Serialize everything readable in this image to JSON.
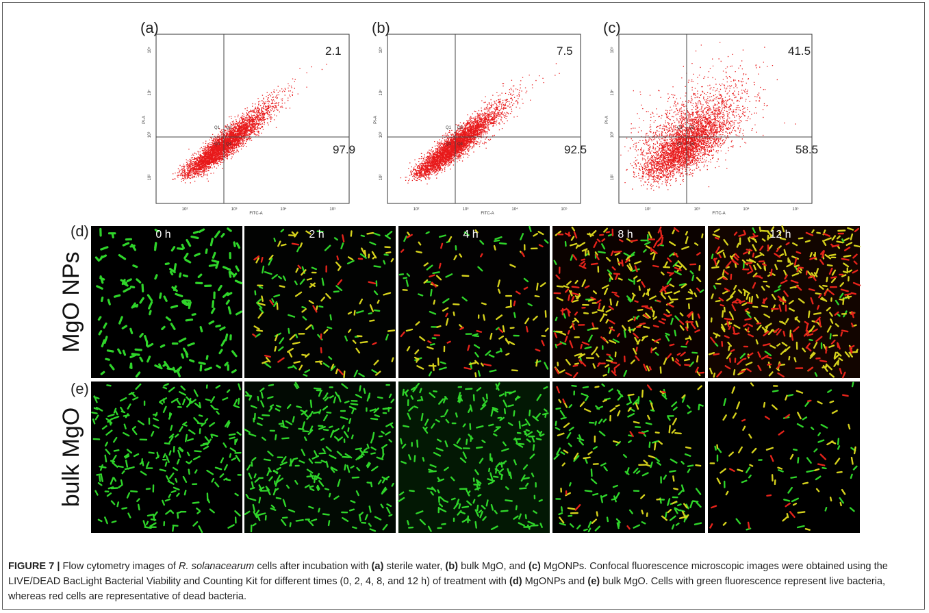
{
  "flow_panels": [
    {
      "label": "(a)",
      "upper_right": 2.1,
      "lower_right": 97.9
    },
    {
      "label": "(b)",
      "upper_right": 7.5,
      "lower_right": 92.5
    },
    {
      "label": "(c)",
      "upper_right": 41.5,
      "lower_right": 58.5
    }
  ],
  "flow_axes": {
    "x_label": "FITC-A",
    "y_label": "PI-A",
    "ticks": [
      "10²",
      "10³",
      "10⁴",
      "10⁵"
    ],
    "quadrants": [
      "Q1",
      "Q2",
      "Q3",
      "Q4"
    ]
  },
  "microscopy": {
    "rows": [
      {
        "panel": "(d)",
        "label": "MgO NPs"
      },
      {
        "panel": "(e)",
        "label": "bulk MgO"
      }
    ],
    "times": [
      "0 h",
      "2 h",
      "4 h",
      "8 h",
      "12 h"
    ]
  },
  "caption": [
    "FIGURE 7 |",
    " Flow cytometry images of ",
    "R. solanacearum",
    " cells after incubation with ",
    "(a)",
    " sterile water, ",
    "(b)",
    " bulk MgO, and ",
    "(c)",
    " MgONPs. Confocal fluorescence microscopic images were obtained using the LIVE/DEAD BacLight Bacterial Viability and Counting Kit for different times (0, 2, 4, 8, and 12 h) of treatment with ",
    "(d)",
    " MgONPs and ",
    "(e)",
    " bulk MgO. Cells with green fluorescence represent live bacteria, whereas red cells are representative of dead bacteria."
  ]
}
